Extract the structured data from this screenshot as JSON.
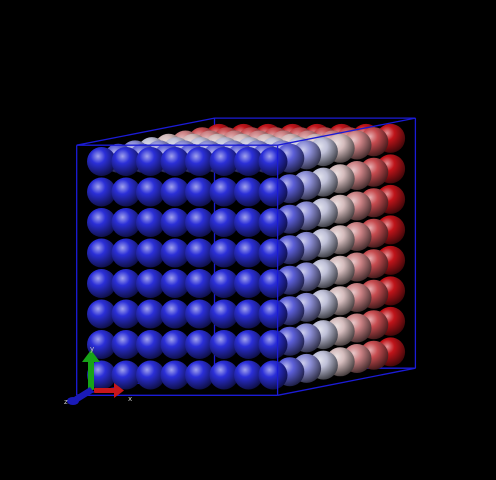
{
  "viewer": {
    "background_color": "#000000",
    "box_color": "#1b1bd6",
    "lattice": {
      "count_x": 8,
      "count_y": 8,
      "count_z": 8,
      "color_cold": "#2b2fd8",
      "color_mid": "#d8d8d8",
      "color_hot": "#c0141a"
    },
    "axes": {
      "x_label": "x",
      "y_label": "y",
      "z_label": "z",
      "x_color": "#c8161b",
      "y_color": "#17a317",
      "z_color": "#1a1ab8"
    }
  }
}
